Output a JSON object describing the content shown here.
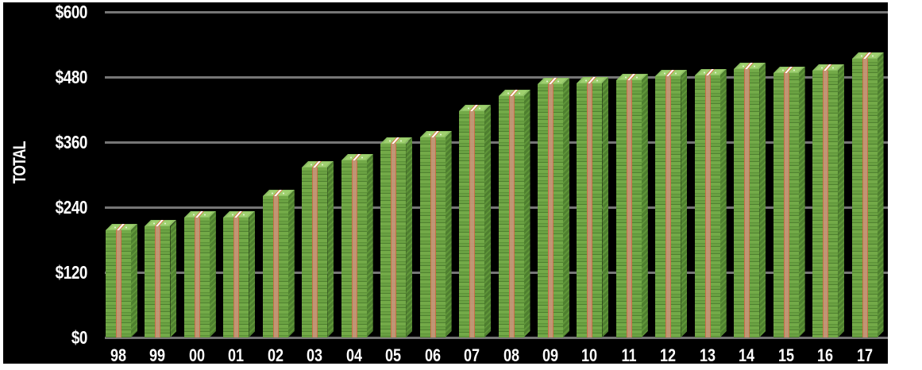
{
  "chart_data": {
    "type": "bar",
    "title": "",
    "xlabel": "",
    "ylabel": "TOTAL",
    "ylim": [
      0,
      600
    ],
    "yticks": [
      "$0",
      "$120",
      "$240",
      "$360",
      "$480",
      "$600"
    ],
    "ytick_values": [
      0,
      120,
      240,
      360,
      480,
      600
    ],
    "grid": true,
    "legend": null,
    "categories": [
      "98",
      "99",
      "00",
      "01",
      "02",
      "03",
      "04",
      "05",
      "06",
      "07",
      "08",
      "09",
      "10",
      "11",
      "12",
      "13",
      "14",
      "15",
      "16",
      "17"
    ],
    "values": [
      197,
      204,
      221,
      221,
      260,
      313,
      326,
      356,
      368,
      416,
      444,
      466,
      468,
      474,
      481,
      483,
      494,
      487,
      491,
      513
    ],
    "bar_style": "stacks of green dollar bills with banding strap",
    "colors": {
      "background": "#000000",
      "bar_front": "#73aa48",
      "bar_side": "#4e7f2f",
      "bar_top": "#8cc063",
      "strap": "#c9957a",
      "grid": "#767676",
      "text": "#ffffff"
    }
  }
}
